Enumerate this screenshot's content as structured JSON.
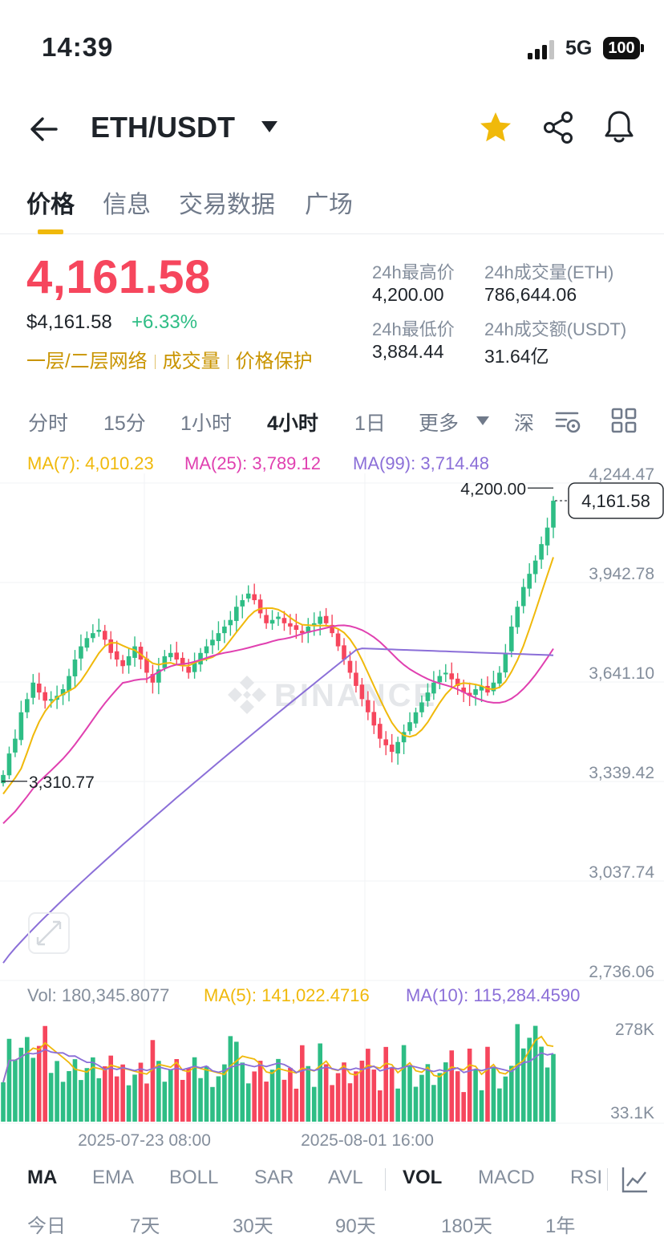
{
  "status": {
    "time": "14:39",
    "network": "5G",
    "battery": "100"
  },
  "header": {
    "pair": "ETH/USDT"
  },
  "tabs": [
    "价格",
    "信息",
    "交易数据",
    "广场"
  ],
  "price": {
    "last": "4,161.58",
    "usd": "$4,161.58",
    "change": "+6.33%",
    "tags": [
      "一层/二层网络",
      "成交量",
      "价格保护"
    ]
  },
  "stats": {
    "high_label": "24h最高价",
    "high": "4,200.00",
    "vol_eth_label": "24h成交量(ETH)",
    "vol_eth": "786,644.06",
    "low_label": "24h最低价",
    "low": "3,884.44",
    "vol_usdt_label": "24h成交额(USDT)",
    "vol_usdt": "31.64亿"
  },
  "intervals": [
    "分时",
    "15分",
    "1小时",
    "4小时",
    "1日",
    "更多",
    "深"
  ],
  "active_interval": "4小时",
  "indicators": [
    "MA",
    "EMA",
    "BOLL",
    "SAR",
    "AVL",
    "VOL",
    "MACD",
    "RSI"
  ],
  "periods": [
    "今日",
    "7天",
    "30天",
    "90天",
    "180天",
    "1年"
  ],
  "colors": {
    "up": "#2ebd85",
    "down": "#f6465d",
    "ma7": "#f0b90b",
    "ma25": "#e040b0",
    "ma99": "#8b6fd8",
    "brand": "#f0b90b"
  },
  "chart_data": {
    "type": "candlestick",
    "watermark": "BINANCE",
    "ma_legend": [
      {
        "name": "MA(7)",
        "value": "4,010.23"
      },
      {
        "name": "MA(25)",
        "value": "3,789.12"
      },
      {
        "name": "MA(99)",
        "value": "3,714.48"
      }
    ],
    "y_ticks": [
      "4,244.47",
      "3,942.78",
      "3,641.10",
      "3,339.42",
      "3,037.74",
      "2,736.06"
    ],
    "y_range": [
      2736.06,
      4244.47
    ],
    "x_ticks": [
      "2025-07-23 08:00",
      "2025-08-01 16:00"
    ],
    "high_label": "4,200.00",
    "low_label": "3,310.77",
    "current_label": "4,161.58",
    "vol_legend": [
      {
        "name": "Vol",
        "value": "180,345.8077"
      },
      {
        "name": "MA(5)",
        "value": "141,022.4716"
      },
      {
        "name": "MA(10)",
        "value": "115,284.4590"
      }
    ],
    "vol_ticks": [
      "278K",
      "33.1K"
    ],
    "vol_range": [
      0,
      278000
    ],
    "closes": [
      3330,
      3395,
      3440,
      3520,
      3560,
      3610,
      3580,
      3555,
      3560,
      3570,
      3590,
      3630,
      3680,
      3720,
      3745,
      3760,
      3770,
      3740,
      3700,
      3680,
      3660,
      3690,
      3720,
      3680,
      3640,
      3610,
      3650,
      3690,
      3700,
      3680,
      3660,
      3640,
      3670,
      3700,
      3720,
      3740,
      3760,
      3780,
      3800,
      3840,
      3860,
      3880,
      3860,
      3820,
      3790,
      3800,
      3810,
      3790,
      3780,
      3770,
      3760,
      3780,
      3790,
      3810,
      3790,
      3760,
      3720,
      3680,
      3640,
      3600,
      3560,
      3520,
      3480,
      3440,
      3420,
      3400,
      3430,
      3460,
      3490,
      3520,
      3550,
      3580,
      3610,
      3630,
      3640,
      3620,
      3600,
      3580,
      3570,
      3590,
      3600,
      3580,
      3610,
      3640,
      3700,
      3780,
      3840,
      3900,
      3940,
      3980,
      4030,
      4080,
      4161.58
    ]
  }
}
